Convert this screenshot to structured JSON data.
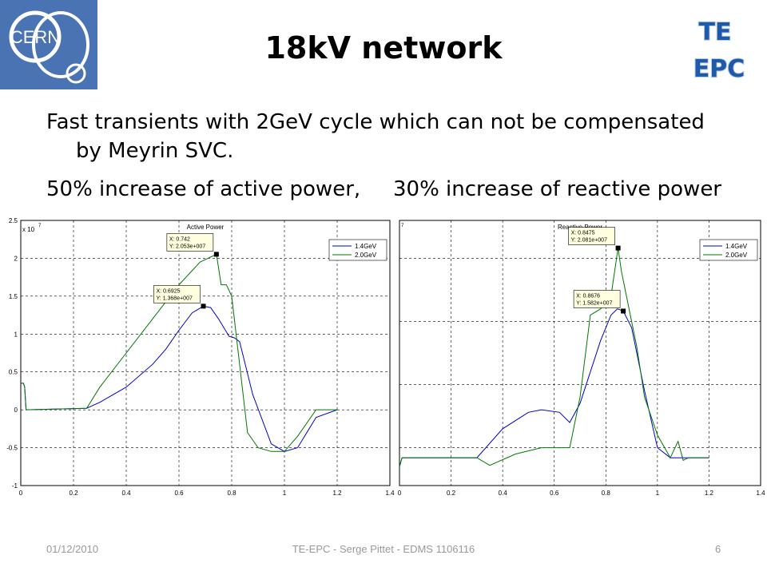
{
  "slide": {
    "title": "18kV network",
    "line1": "Fast transients with 2GeV cycle which can not be compensated",
    "line1b": "by Meyrin SVC.",
    "line2a": "50% increase of active power,",
    "line2b": "30% increase of reactive power",
    "logo_left": "CERN",
    "logo_right_1": "TE",
    "logo_right_2": "EPC"
  },
  "footer": {
    "date": "01/12/2010",
    "center": "TE-EPC - Serge Pittet - EDMS 1106116",
    "page": "6"
  },
  "colors": {
    "series1": "#0000cc",
    "series2": "#007700"
  },
  "chart_data": [
    {
      "type": "line",
      "title": "Active Power",
      "exponent_label": "x 10",
      "exponent_sup": "7",
      "xlim": [
        0,
        1.4
      ],
      "ylim": [
        -1,
        2.5
      ],
      "xticks": [
        0,
        0.2,
        0.4,
        0.6,
        0.8,
        1,
        1.2,
        1.4
      ],
      "yticks": [
        -1,
        -0.5,
        0,
        0.5,
        1,
        1.5,
        2,
        2.5
      ],
      "xtick_labels": [
        "0",
        "0.2",
        "0.4",
        "0.6",
        "0.8",
        "1",
        "1.2",
        "1.4"
      ],
      "ytick_labels": [
        "-1",
        "-0.5",
        "0",
        "0.5",
        "1",
        "1.5",
        "2",
        "2.5"
      ],
      "grid": true,
      "legend": "top-right",
      "series": [
        {
          "name": "1.4GeV",
          "color": "#0000cc",
          "x": [
            0,
            0.005,
            0.01,
            0.015,
            0.02,
            0.25,
            0.3,
            0.4,
            0.5,
            0.55,
            0.6,
            0.65,
            0.6925,
            0.72,
            0.75,
            0.79,
            0.81,
            0.83,
            0.88,
            0.95,
            1.0,
            1.05,
            1.12,
            1.2
          ],
          "y": [
            0.35,
            0.35,
            0.35,
            0.3,
            0.0,
            0.02,
            0.1,
            0.3,
            0.6,
            0.8,
            1.05,
            1.28,
            1.368,
            1.35,
            1.2,
            0.97,
            0.95,
            0.9,
            0.2,
            -0.45,
            -0.55,
            -0.5,
            -0.1,
            0.0
          ]
        },
        {
          "name": "2.0GeV",
          "color": "#007700",
          "x": [
            0,
            0.005,
            0.01,
            0.015,
            0.02,
            0.25,
            0.3,
            0.4,
            0.5,
            0.6,
            0.68,
            0.742,
            0.76,
            0.78,
            0.8,
            0.86,
            0.9,
            0.95,
            1.0,
            1.05,
            1.12,
            1.2
          ],
          "y": [
            0.35,
            0.35,
            0.35,
            0.3,
            0.0,
            0.02,
            0.3,
            0.75,
            1.2,
            1.65,
            1.95,
            2.053,
            1.65,
            1.65,
            1.5,
            -0.3,
            -0.5,
            -0.55,
            -0.55,
            -0.35,
            0.0,
            0.0
          ]
        }
      ],
      "annotations": [
        {
          "x": 0.742,
          "y": 2.053,
          "label_x": "X: 0.742",
          "label_y": "Y: 2.053e+007"
        },
        {
          "x": 0.6925,
          "y": 1.368,
          "label_x": "X: 0.6925",
          "label_y": "Y: 1.368e+007"
        }
      ]
    },
    {
      "type": "line",
      "title": "Reactive Power",
      "exponent_label": "",
      "exponent_sup": "7",
      "xlim": [
        0,
        1.4
      ],
      "ylim": [
        0.2,
        2.3
      ],
      "xticks": [
        0,
        0.2,
        0.4,
        0.6,
        0.8,
        1,
        1.2,
        1.4
      ],
      "yticks": [
        0.5,
        1.0,
        1.5,
        2.0
      ],
      "xtick_labels": [
        "0",
        "0.2",
        "0.4",
        "0.6",
        "0.8",
        "1",
        "1.2",
        "1.4"
      ],
      "ytick_labels": [],
      "grid": true,
      "legend": "top-right",
      "series": [
        {
          "name": "1.4GeV",
          "color": "#0000cc",
          "x": [
            0,
            0.01,
            0.3,
            0.4,
            0.5,
            0.55,
            0.62,
            0.66,
            0.7,
            0.74,
            0.78,
            0.82,
            0.845,
            0.8676,
            0.9,
            0.95,
            1.0,
            1.05,
            1.1,
            1.2
          ],
          "y": [
            0.35,
            0.42,
            0.42,
            0.65,
            0.78,
            0.8,
            0.78,
            0.7,
            0.85,
            1.1,
            1.35,
            1.55,
            1.6,
            1.582,
            1.45,
            0.95,
            0.5,
            0.42,
            0.42,
            0.42
          ]
        },
        {
          "name": "2.0GeV",
          "color": "#007700",
          "x": [
            0,
            0.01,
            0.3,
            0.35,
            0.45,
            0.55,
            0.6,
            0.66,
            0.7,
            0.74,
            0.78,
            0.82,
            0.8475,
            0.86,
            0.88,
            0.92,
            0.95,
            1.0,
            1.05,
            1.08,
            1.1,
            1.12,
            1.2
          ],
          "y": [
            0.35,
            0.42,
            0.42,
            0.36,
            0.45,
            0.5,
            0.5,
            0.5,
            0.9,
            1.55,
            1.6,
            1.7,
            2.081,
            1.9,
            1.7,
            1.3,
            0.9,
            0.6,
            0.42,
            0.55,
            0.4,
            0.42,
            0.42
          ]
        }
      ],
      "annotations": [
        {
          "x": 0.8475,
          "y": 2.081,
          "label_x": "X: 0.8475",
          "label_y": "Y: 2.081e+007"
        },
        {
          "x": 0.8676,
          "y": 1.582,
          "label_x": "X: 0.8676",
          "label_y": "Y: 1.582e+007"
        }
      ]
    }
  ]
}
